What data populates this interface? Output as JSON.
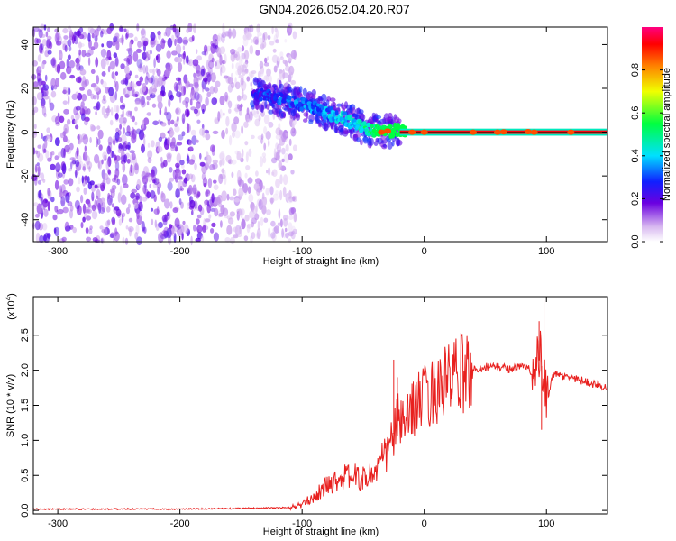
{
  "figure_title": "GN04.2026.052.04.20.R07",
  "chart_data": [
    {
      "type": "heatmap",
      "name": "spectrogram",
      "xlabel": "Height of straight line (km)",
      "ylabel": "Frequency (Hz)",
      "xlim": [
        -320,
        150
      ],
      "ylim": [
        -50,
        48
      ],
      "x_ticks": [
        -300,
        -200,
        -100,
        0,
        100
      ],
      "x_tick_labels": [
        "-300",
        "-200",
        "-100",
        "0",
        "100"
      ],
      "y_ticks": [
        -40,
        -20,
        0,
        20,
        40
      ],
      "y_tick_labels": [
        "-40",
        "-20",
        "0",
        "20",
        "40"
      ],
      "noise_region_x": [
        -320,
        -110
      ],
      "signal_track": {
        "x": [
          -140,
          -125,
          -110,
          -95,
          -80,
          -65,
          -55,
          -45,
          -35,
          -25,
          -15,
          0,
          20,
          40,
          60,
          80,
          90,
          100,
          120,
          150
        ],
        "y": [
          18,
          16,
          14,
          12,
          9,
          6,
          3,
          1,
          0,
          1,
          0,
          0,
          0,
          0,
          0,
          0.5,
          0,
          0,
          0,
          0
        ],
        "amplitude": [
          0.25,
          0.3,
          0.3,
          0.35,
          0.4,
          0.45,
          0.5,
          0.6,
          0.7,
          0.85,
          0.9,
          0.95,
          1,
          1,
          1,
          1,
          1,
          1,
          1,
          1
        ]
      },
      "colorbar": {
        "label": "Normalized spectral amplitude",
        "range": [
          0,
          1
        ],
        "ticks": [
          0.0,
          0.2,
          0.4,
          0.6,
          0.8
        ],
        "tick_labels": [
          "0.0",
          "0.2",
          "0.4",
          "0.6",
          "0.8"
        ]
      }
    },
    {
      "type": "line",
      "name": "snr",
      "xlabel": "Height of straight line (km)",
      "ylabel": "SNR (10 * v/v)",
      "scale_label": "(x10",
      "scale_exponent": "4",
      "scale_close": ")",
      "xlim": [
        -320,
        150
      ],
      "ylim": [
        -0.05,
        3.05
      ],
      "x_ticks": [
        -300,
        -200,
        -100,
        0,
        100
      ],
      "x_tick_labels": [
        "-300",
        "-200",
        "-100",
        "0",
        "100"
      ],
      "y_ticks": [
        0.0,
        0.5,
        1.0,
        1.5,
        2.0,
        2.5
      ],
      "y_tick_labels": [
        "0.0",
        "0.5",
        "1.0",
        "1.5",
        "2.0",
        "2.5"
      ],
      "line_color": "#e8201e",
      "series": [
        {
          "x": [
            -320,
            -250,
            -200,
            -150,
            -110,
            -100,
            -90,
            -80,
            -70,
            -60,
            -50,
            -40,
            -35,
            -30,
            -25,
            -20,
            -15,
            -10,
            -5,
            0,
            10,
            20,
            30,
            40,
            50,
            60,
            70,
            80,
            85,
            90,
            95,
            100,
            105,
            110,
            120,
            130,
            140,
            150
          ],
          "y": [
            0.02,
            0.02,
            0.02,
            0.03,
            0.04,
            0.08,
            0.2,
            0.35,
            0.45,
            0.5,
            0.45,
            0.55,
            0.7,
            0.85,
            1.1,
            1.3,
            1.2,
            1.5,
            1.55,
            1.6,
            1.75,
            1.85,
            1.95,
            2.0,
            2.05,
            2.05,
            2.02,
            2.05,
            2.05,
            1.9,
            2.2,
            1.5,
            1.95,
            1.92,
            1.9,
            1.85,
            1.8,
            1.75
          ]
        }
      ],
      "spikes": [
        {
          "x": -25,
          "y": 2.15
        },
        {
          "x": -22,
          "y": 1.9
        },
        {
          "x": 94,
          "y": 2.7
        },
        {
          "x": 98,
          "y": 3.0
        },
        {
          "x": 96,
          "y": 1.15
        }
      ]
    }
  ]
}
